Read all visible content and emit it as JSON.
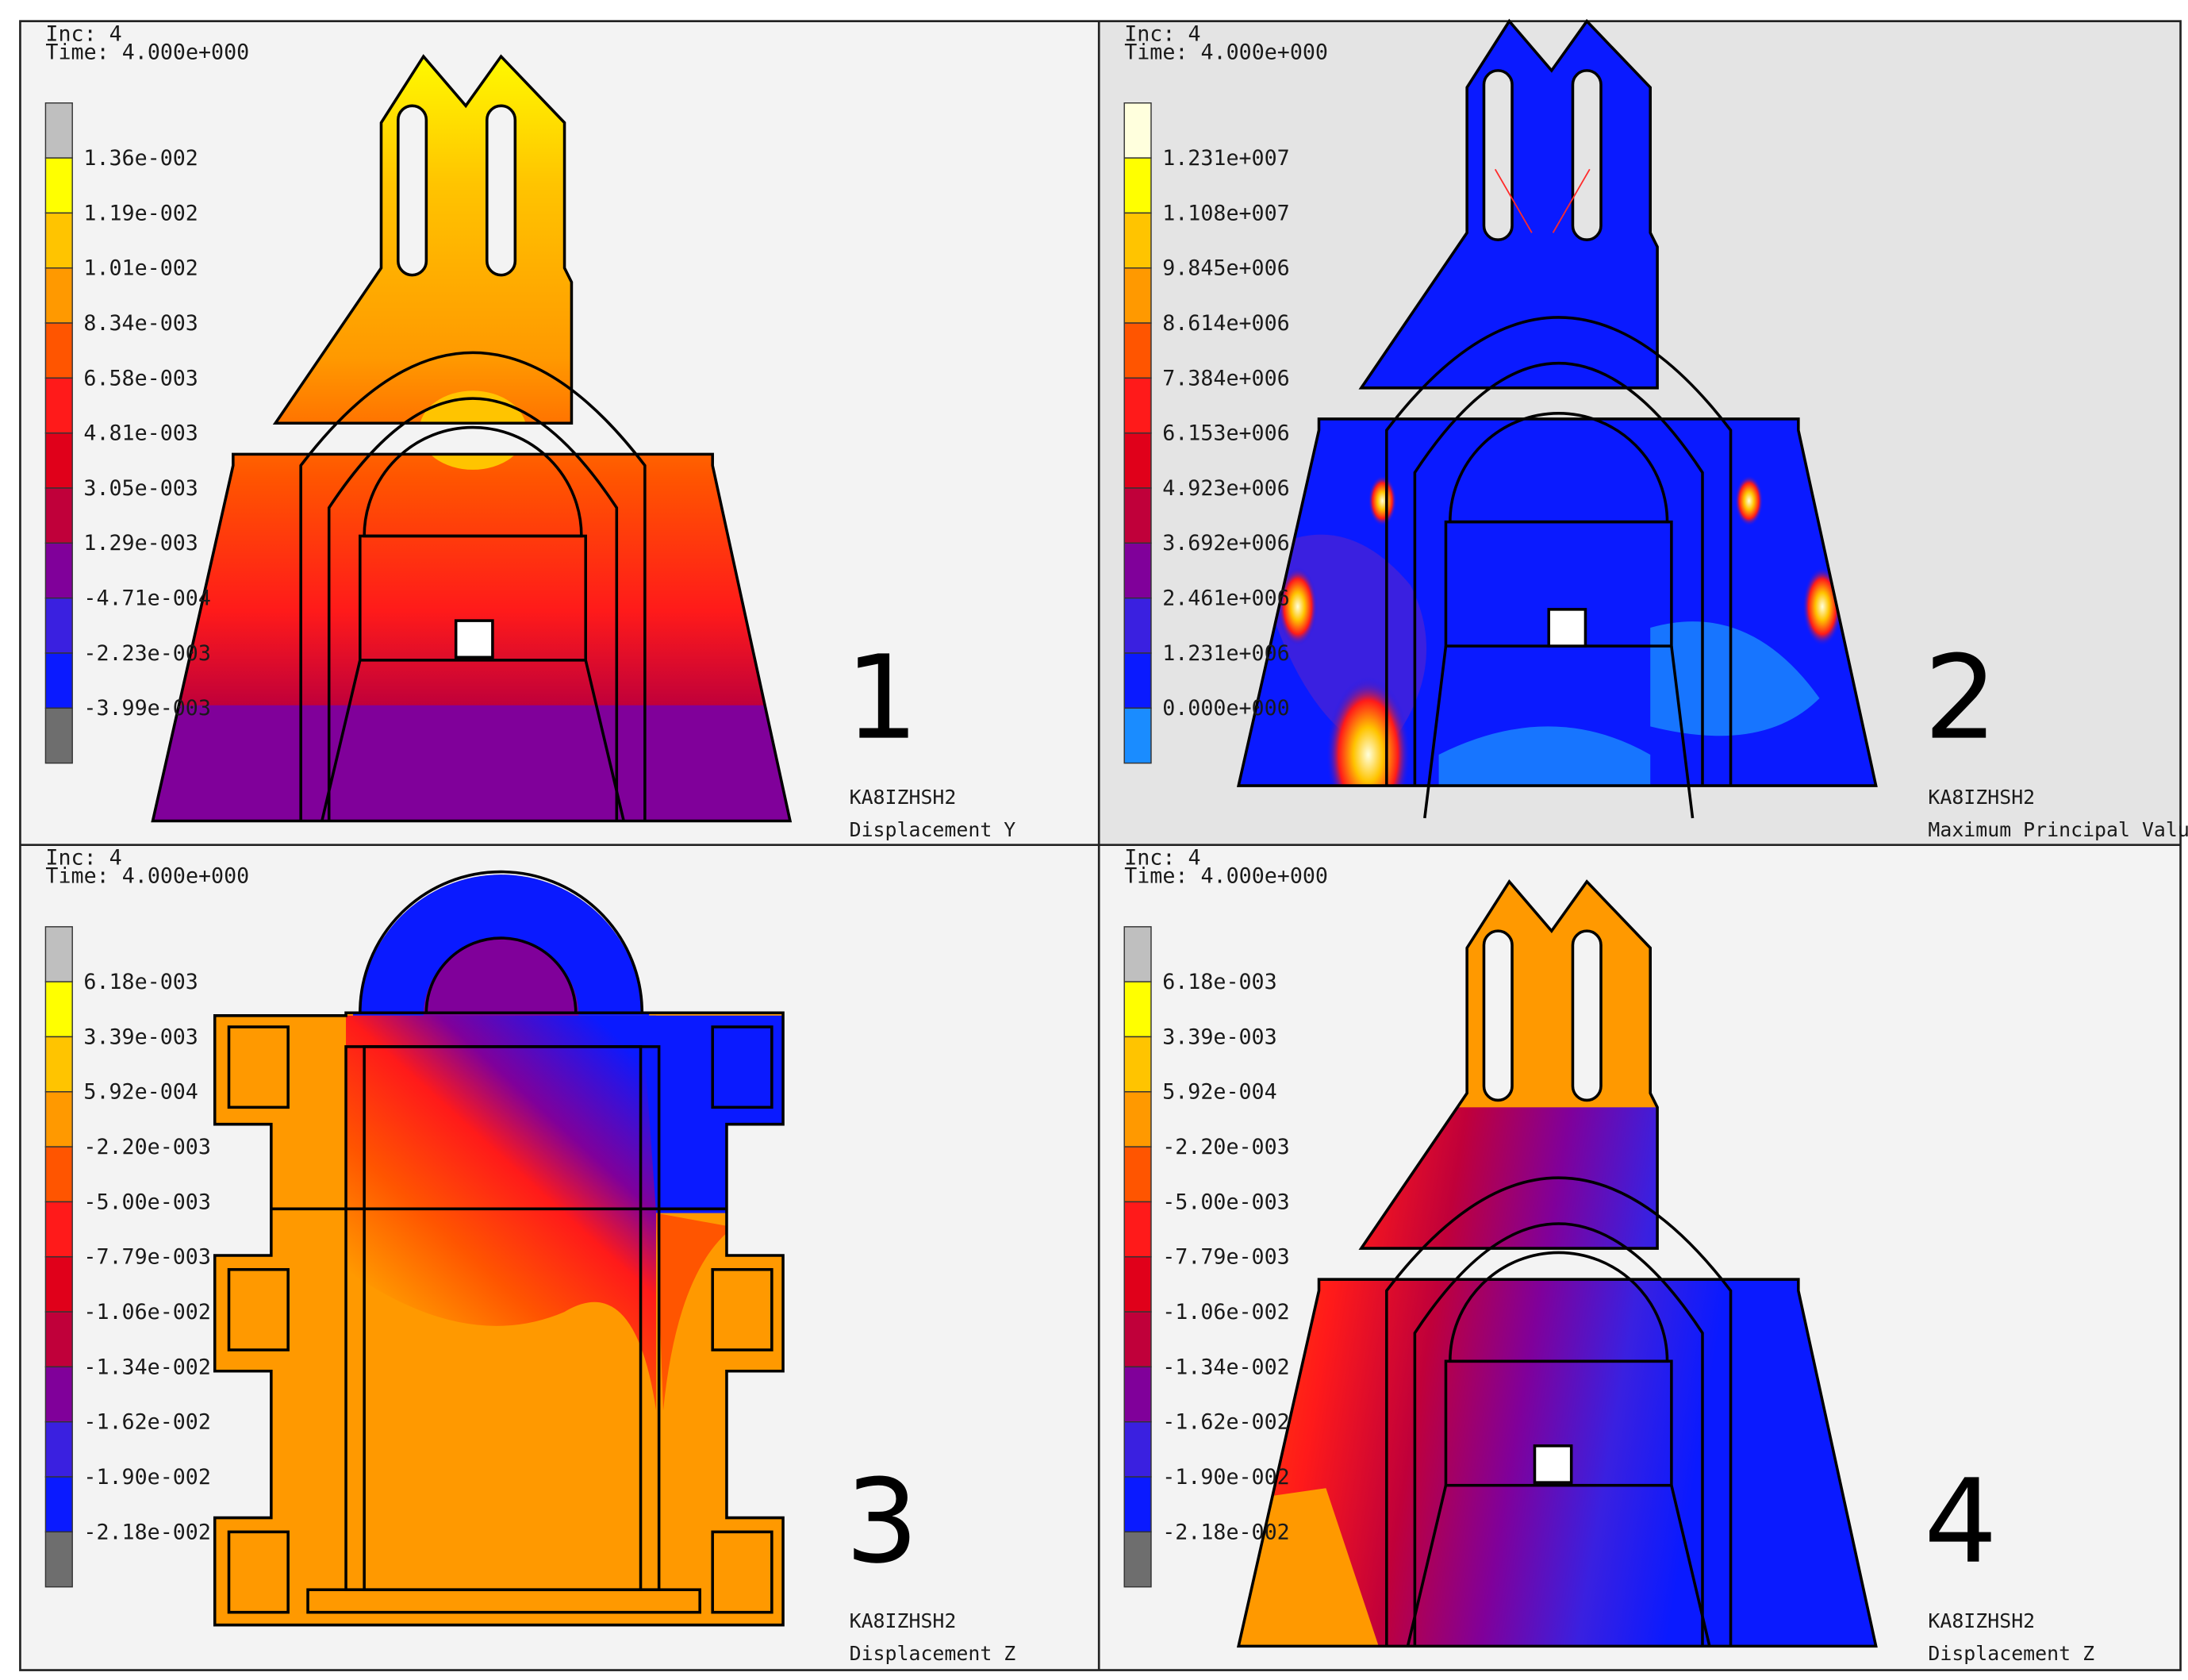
{
  "panels": [
    {
      "id": "1",
      "number": "1",
      "inc": "Inc: 4",
      "time": "Time: 4.000e+000",
      "model": "KA8IZHSH2",
      "result": "Displacement Y",
      "legend_labels": [
        "1.36e-002",
        "1.19e-002",
        "1.01e-002",
        "8.34e-003",
        "6.58e-003",
        "4.81e-003",
        "3.05e-003",
        "1.29e-003",
        "-4.71e-004",
        "-2.23e-003",
        "-3.99e-003"
      ],
      "legend_colors": [
        "#bfbfbf",
        "#ffff00",
        "#ffc400",
        "#ff9900",
        "#ff5500",
        "#ff1a1a",
        "#e0001a",
        "#c0003a",
        "#80009a",
        "#3a20e0",
        "#0a1aff",
        "#6e6e6e"
      ]
    },
    {
      "id": "2",
      "number": "2",
      "inc": "Inc: 4",
      "time": "Time: 4.000e+000",
      "model": "KA8IZHSH2",
      "result": "Maximum Principal Value of Stress",
      "legend_labels": [
        "1.231e+007",
        "1.108e+007",
        "9.845e+006",
        "8.614e+006",
        "7.384e+006",
        "6.153e+006",
        "4.923e+006",
        "3.692e+006",
        "2.461e+006",
        "1.231e+006",
        "0.000e+000"
      ],
      "legend_colors": [
        "#ffffdd",
        "#ffff00",
        "#ffc400",
        "#ff9900",
        "#ff5500",
        "#ff1a1a",
        "#e0001a",
        "#c0003a",
        "#80009a",
        "#3a20e0",
        "#0a1aff",
        "#1a8cff"
      ]
    },
    {
      "id": "3",
      "number": "3",
      "inc": "Inc: 4",
      "time": "Time: 4.000e+000",
      "model": "KA8IZHSH2",
      "result": "Displacement Z",
      "legend_labels": [
        "6.18e-003",
        "3.39e-003",
        "5.92e-004",
        "-2.20e-003",
        "-5.00e-003",
        "-7.79e-003",
        "-1.06e-002",
        "-1.34e-002",
        "-1.62e-002",
        "-1.90e-002",
        "-2.18e-002"
      ],
      "legend_colors": [
        "#bfbfbf",
        "#ffff00",
        "#ffc400",
        "#ff9900",
        "#ff5500",
        "#ff1a1a",
        "#e0001a",
        "#c0003a",
        "#80009a",
        "#3a20e0",
        "#0a1aff",
        "#6e6e6e"
      ]
    },
    {
      "id": "4",
      "number": "4",
      "inc": "Inc: 4",
      "time": "Time: 4.000e+000",
      "model": "KA8IZHSH2",
      "result": "Displacement Z",
      "legend_labels": [
        "6.18e-003",
        "3.39e-003",
        "5.92e-004",
        "-2.20e-003",
        "-5.00e-003",
        "-7.79e-003",
        "-1.06e-002",
        "-1.34e-002",
        "-1.62e-002",
        "-1.90e-002",
        "-2.18e-002"
      ],
      "legend_colors": [
        "#bfbfbf",
        "#ffff00",
        "#ffc400",
        "#ff9900",
        "#ff5500",
        "#ff1a1a",
        "#e0001a",
        "#c0003a",
        "#80009a",
        "#3a20e0",
        "#0a1aff",
        "#6e6e6e"
      ]
    }
  ]
}
